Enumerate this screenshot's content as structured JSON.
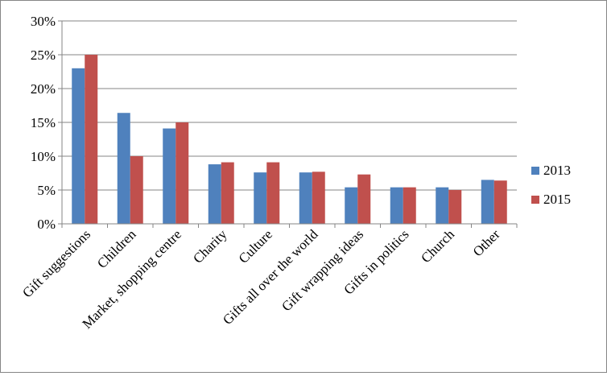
{
  "chart_data": {
    "type": "bar",
    "title": "",
    "xlabel": "",
    "ylabel": "",
    "ylim": [
      0,
      30
    ],
    "y_tick_step": 5,
    "y_tick_format": "percent",
    "grid": "horizontal",
    "legend_position": "right",
    "categories": [
      "Gift suggestions",
      "Children",
      "Market, shopping centre",
      "Charity",
      "Culture",
      "Gifts all over the world",
      "Gift wrapping ideas",
      "Gifts in politics",
      "Church",
      "Other"
    ],
    "series": [
      {
        "name": "2013",
        "color": "#4f81bd",
        "values": [
          23,
          16.4,
          14.1,
          8.8,
          7.6,
          7.6,
          5.4,
          5.4,
          5.4,
          6.5
        ]
      },
      {
        "name": "2015",
        "color": "#c0504d",
        "values": [
          25,
          10,
          15,
          9.1,
          9.1,
          7.7,
          7.3,
          5.4,
          5,
          6.4
        ]
      }
    ]
  }
}
